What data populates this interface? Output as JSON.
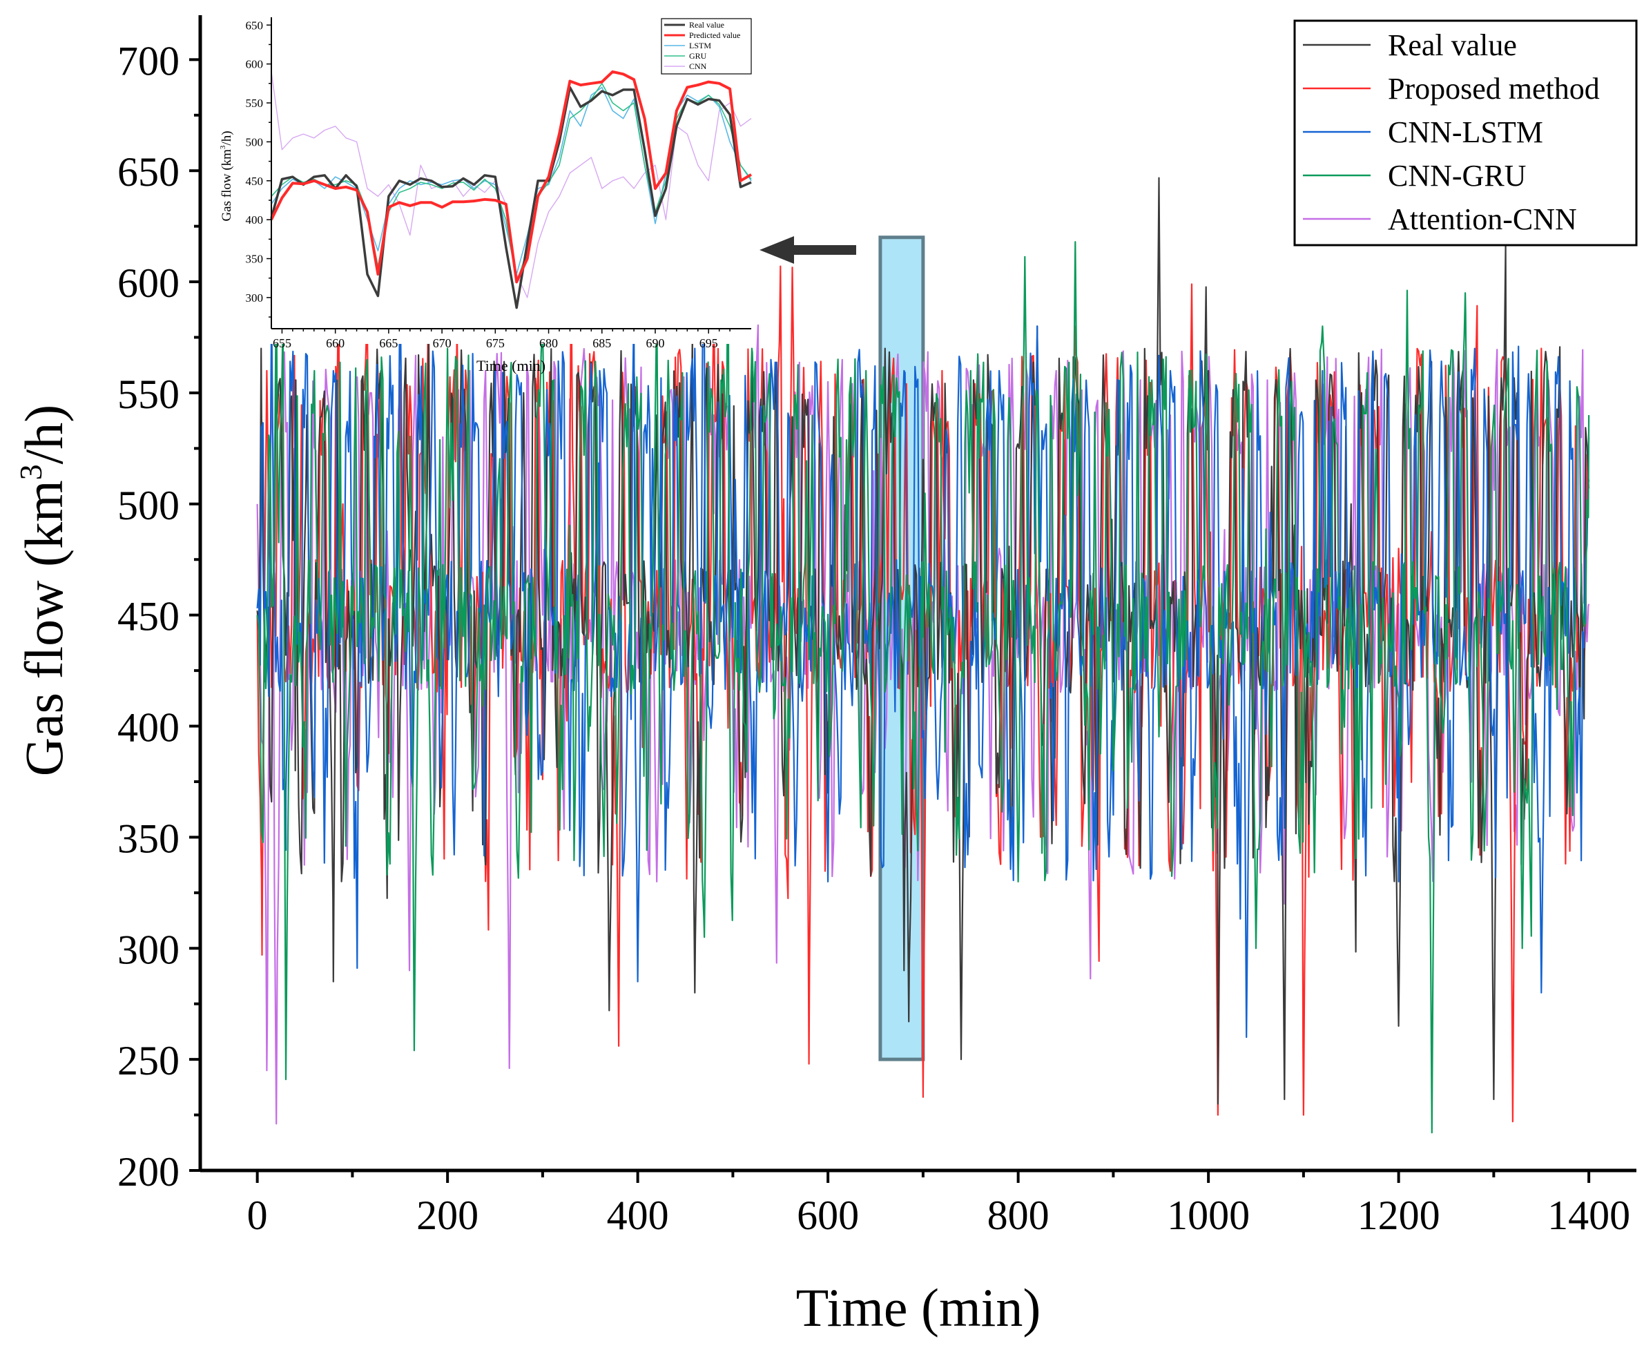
{
  "chart_data": [
    {
      "id": "main",
      "type": "line",
      "xlabel": "Time (min)",
      "ylabel": "Gas flow (km³/h)",
      "ylabel_parts": {
        "pre": "Gas flow (km",
        "sup": "3",
        "post": "/h)"
      },
      "xlim": [
        -60,
        1450
      ],
      "ylim": [
        200,
        720
      ],
      "xticks": [
        0,
        200,
        400,
        600,
        800,
        1000,
        1200,
        1400
      ],
      "xtick_labels": [
        "0",
        "200",
        "400",
        "600",
        "800",
        "1000",
        "1200",
        "1400"
      ],
      "yticks": [
        200,
        250,
        300,
        350,
        400,
        450,
        500,
        550,
        600,
        650,
        700
      ],
      "ytick_labels": [
        "200",
        "250",
        "300",
        "350",
        "400",
        "450",
        "500",
        "550",
        "600",
        "650",
        "700"
      ],
      "highlight": {
        "x_from": 655,
        "x_to": 700,
        "y_from": 250,
        "y_to": 620,
        "color": "#aee4f7"
      },
      "legend": {
        "position": "top-right",
        "entries": [
          "Real value",
          "Proposed method",
          "CNN-LSTM",
          "CNN-GRU",
          "Attention-CNN"
        ]
      },
      "series": [
        {
          "name": "Real value",
          "color": "#3a3a3a"
        },
        {
          "name": "Proposed method",
          "color": "#ff2a2a"
        },
        {
          "name": "CNN-LSTM",
          "color": "#1464d2"
        },
        {
          "name": "CNN-GRU",
          "color": "#0b9a5a"
        },
        {
          "name": "Attention-CNN",
          "color": "#c56ee6"
        }
      ],
      "x_range_data": [
        0,
        1400
      ],
      "keypoints": {
        "Real value": [
          [
            0,
            452
          ],
          [
            4,
            570
          ],
          [
            8,
            420
          ],
          [
            20,
            555
          ],
          [
            40,
            380
          ],
          [
            52,
            540
          ],
          [
            80,
            285
          ],
          [
            100,
            450
          ],
          [
            130,
            560
          ],
          [
            160,
            470
          ],
          [
            180,
            575
          ],
          [
            200,
            430
          ],
          [
            280,
            550
          ],
          [
            330,
            478
          ],
          [
            370,
            272
          ],
          [
            420,
            540
          ],
          [
            460,
            280
          ],
          [
            520,
            560
          ],
          [
            560,
            500
          ],
          [
            620,
            470
          ],
          [
            660,
            570
          ],
          [
            680,
            290
          ],
          [
            685,
            267
          ],
          [
            700,
            520
          ],
          [
            740,
            250
          ],
          [
            820,
            580
          ],
          [
            900,
            420
          ],
          [
            1000,
            560
          ],
          [
            1010,
            230
          ],
          [
            1080,
            232
          ],
          [
            1150,
            500
          ],
          [
            1200,
            265
          ],
          [
            1300,
            232
          ],
          [
            1400,
            510
          ]
        ],
        "Proposed method": [
          [
            0,
            450
          ],
          [
            5,
            297
          ],
          [
            10,
            560
          ],
          [
            30,
            420
          ],
          [
            90,
            500
          ],
          [
            150,
            560
          ],
          [
            180,
            600
          ],
          [
            210,
            580
          ],
          [
            250,
            470
          ],
          [
            330,
            605
          ],
          [
            360,
            430
          ],
          [
            380,
            256
          ],
          [
            420,
            470
          ],
          [
            480,
            590
          ],
          [
            550,
            607
          ],
          [
            580,
            248
          ],
          [
            620,
            500
          ],
          [
            660,
            560
          ],
          [
            700,
            233
          ],
          [
            720,
            560
          ],
          [
            800,
            440
          ],
          [
            860,
            580
          ],
          [
            950,
            400
          ],
          [
            1010,
            225
          ],
          [
            1100,
            225
          ],
          [
            1200,
            480
          ],
          [
            1320,
            222
          ],
          [
            1350,
            570
          ],
          [
            1400,
            507
          ]
        ],
        "CNN-LSTM": [
          [
            0,
            453
          ],
          [
            15,
            590
          ],
          [
            30,
            370
          ],
          [
            80,
            560
          ],
          [
            120,
            430
          ],
          [
            150,
            605
          ],
          [
            180,
            450
          ],
          [
            250,
            560
          ],
          [
            300,
            380
          ],
          [
            360,
            560
          ],
          [
            400,
            285
          ],
          [
            460,
            570
          ],
          [
            500,
            440
          ],
          [
            540,
            565
          ],
          [
            600,
            330
          ],
          [
            680,
            560
          ],
          [
            720,
            420
          ],
          [
            780,
            560
          ],
          [
            820,
            580
          ],
          [
            900,
            360
          ],
          [
            960,
            560
          ],
          [
            1040,
            260
          ],
          [
            1120,
            560
          ],
          [
            1200,
            330
          ],
          [
            1280,
            570
          ],
          [
            1350,
            280
          ],
          [
            1400,
            530
          ]
        ],
        "CNN-GRU": [
          [
            0,
            450
          ],
          [
            20,
            600
          ],
          [
            30,
            241
          ],
          [
            60,
            560
          ],
          [
            120,
            440
          ],
          [
            165,
            254
          ],
          [
            200,
            570
          ],
          [
            250,
            430
          ],
          [
            300,
            580
          ],
          [
            350,
            400
          ],
          [
            420,
            590
          ],
          [
            470,
            305
          ],
          [
            520,
            570
          ],
          [
            580,
            430
          ],
          [
            640,
            560
          ],
          [
            700,
            440
          ],
          [
            750,
            560
          ],
          [
            800,
            330
          ],
          [
            860,
            618
          ],
          [
            900,
            380
          ],
          [
            980,
            560
          ],
          [
            1050,
            300
          ],
          [
            1120,
            580
          ],
          [
            1180,
            420
          ],
          [
            1235,
            217
          ],
          [
            1270,
            595
          ],
          [
            1330,
            300
          ],
          [
            1400,
            540
          ]
        ],
        "Attention-CNN": [
          [
            0,
            500
          ],
          [
            10,
            245
          ],
          [
            20,
            221
          ],
          [
            40,
            530
          ],
          [
            80,
            420
          ],
          [
            120,
            550
          ],
          [
            160,
            290
          ],
          [
            200,
            460
          ],
          [
            240,
            560
          ],
          [
            265,
            246
          ],
          [
            300,
            450
          ],
          [
            360,
            550
          ],
          [
            420,
            330
          ],
          [
            480,
            540
          ],
          [
            540,
            420
          ],
          [
            600,
            555
          ],
          [
            660,
            390
          ],
          [
            720,
            520
          ],
          [
            780,
            480
          ],
          [
            840,
            560
          ],
          [
            900,
            420
          ],
          [
            960,
            540
          ],
          [
            1020,
            380
          ],
          [
            1080,
            320
          ],
          [
            1100,
            395
          ],
          [
            1160,
            540
          ],
          [
            1220,
            440
          ],
          [
            1280,
            550
          ],
          [
            1340,
            420
          ],
          [
            1400,
            455
          ]
        ]
      }
    },
    {
      "id": "inset",
      "type": "line",
      "xlabel": "Time (min)",
      "ylabel": "Gas flow (km³/h)",
      "ylabel_parts": {
        "pre": "Gas flow (km",
        "sup": "3",
        "post": "/h)"
      },
      "xlim": [
        654,
        699
      ],
      "ylim": [
        260,
        660
      ],
      "xticks": [
        655,
        660,
        665,
        670,
        675,
        680,
        685,
        690,
        695
      ],
      "xtick_labels": [
        "655",
        "660",
        "665",
        "670",
        "675",
        "680",
        "685",
        "690",
        "695"
      ],
      "yticks": [
        300,
        350,
        400,
        450,
        500,
        550,
        600,
        650
      ],
      "ytick_labels": [
        "300",
        "350",
        "400",
        "450",
        "500",
        "550",
        "600",
        "650"
      ],
      "legend": {
        "position": "top-right",
        "entries": [
          "Real value",
          "Predicted value",
          "LSTM",
          "GRU",
          "CNN"
        ]
      },
      "x": [
        654,
        655,
        656,
        657,
        658,
        659,
        660,
        661,
        662,
        663,
        664,
        665,
        666,
        667,
        668,
        669,
        670,
        671,
        672,
        673,
        674,
        675,
        676,
        677,
        678,
        679,
        680,
        681,
        682,
        683,
        684,
        685,
        686,
        687,
        688,
        689,
        690,
        691,
        692,
        693,
        694,
        695,
        696,
        697,
        698,
        699
      ],
      "series": [
        {
          "name": "Real value",
          "color": "#3c3c3c",
          "width": 3.5,
          "values": [
            402,
            452,
            455,
            445,
            455,
            457,
            440,
            457,
            443,
            330,
            302,
            430,
            450,
            445,
            453,
            450,
            442,
            443,
            453,
            445,
            457,
            455,
            365,
            287,
            370,
            450,
            450,
            500,
            570,
            545,
            553,
            565,
            560,
            567,
            567,
            490,
            405,
            440,
            520,
            555,
            548,
            555,
            553,
            535,
            442,
            448
          ]
        },
        {
          "name": "Predicted value",
          "color": "#ff2a2a",
          "width": 4.0,
          "values": [
            400,
            428,
            447,
            446,
            450,
            445,
            440,
            442,
            438,
            410,
            330,
            416,
            422,
            418,
            422,
            422,
            416,
            423,
            423,
            424,
            426,
            425,
            420,
            320,
            350,
            430,
            455,
            510,
            578,
            573,
            575,
            577,
            590,
            587,
            580,
            530,
            440,
            460,
            540,
            570,
            573,
            577,
            575,
            568,
            450,
            458
          ]
        },
        {
          "name": "LSTM",
          "color": "#59b8e6",
          "width": 1.6,
          "values": [
            420,
            440,
            452,
            445,
            450,
            440,
            455,
            448,
            440,
            400,
            360,
            420,
            440,
            450,
            445,
            448,
            445,
            450,
            452,
            440,
            450,
            445,
            390,
            330,
            380,
            440,
            445,
            480,
            540,
            520,
            560,
            570,
            540,
            530,
            555,
            470,
            395,
            460,
            540,
            560,
            552,
            560,
            545,
            500,
            470,
            450
          ]
        },
        {
          "name": "GRU",
          "color": "#2fc08a",
          "width": 1.6,
          "values": [
            430,
            445,
            455,
            448,
            452,
            445,
            445,
            450,
            445,
            410,
            340,
            410,
            435,
            440,
            448,
            445,
            440,
            447,
            448,
            438,
            452,
            440,
            400,
            320,
            360,
            430,
            448,
            470,
            530,
            540,
            555,
            575,
            550,
            540,
            550,
            470,
            410,
            450,
            530,
            555,
            550,
            560,
            548,
            520,
            470,
            452
          ]
        },
        {
          "name": "CNN",
          "color": "#d7a8f2",
          "width": 1.4,
          "values": [
            590,
            490,
            505,
            510,
            505,
            515,
            520,
            505,
            500,
            440,
            430,
            445,
            420,
            380,
            470,
            440,
            445,
            450,
            430,
            445,
            435,
            450,
            420,
            330,
            300,
            370,
            410,
            430,
            460,
            470,
            480,
            440,
            450,
            455,
            440,
            460,
            470,
            400,
            520,
            510,
            470,
            450,
            540,
            550,
            520,
            530
          ]
        }
      ]
    }
  ]
}
